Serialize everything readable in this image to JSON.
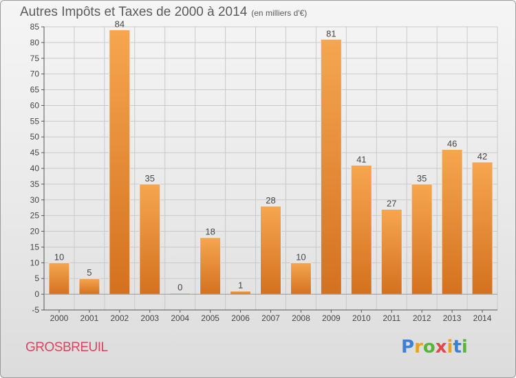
{
  "header": {
    "title": "Autres Impôts et Taxes de 2000 à 2014",
    "subtitle": "(en milliers d'€)"
  },
  "footer": {
    "commune": "GROSBREUIL",
    "logo_letters": [
      "P",
      "r",
      "o",
      "x",
      "i",
      "t",
      "i"
    ],
    "logo_colors": [
      "#3d7fd6",
      "#e8a31a",
      "#59b539",
      "#e2474b",
      "#e8a31a",
      "#3d7fd6",
      "#59b539"
    ]
  },
  "colors": {
    "bar_top": "#f6a64f",
    "bar_bottom": "#d4711f",
    "grid": "#c9c9c9",
    "axis": "#555555",
    "text": "#444444"
  },
  "chart_data": {
    "type": "bar",
    "categories": [
      "2000",
      "2001",
      "2002",
      "2003",
      "2004",
      "2005",
      "2006",
      "2007",
      "2008",
      "2009",
      "2010",
      "2011",
      "2012",
      "2013",
      "2014"
    ],
    "values": [
      10,
      5,
      84,
      35,
      0,
      18,
      1,
      28,
      10,
      81,
      41,
      27,
      35,
      46,
      42
    ],
    "data_labels": [
      "10",
      "5",
      "84",
      "35",
      "0",
      "18",
      "1",
      "28",
      "10",
      "81",
      "41",
      "27",
      "35",
      "46",
      "42"
    ],
    "ylim": [
      -5,
      85
    ],
    "yticks": [
      -5,
      0,
      5,
      10,
      15,
      20,
      25,
      30,
      35,
      40,
      45,
      50,
      55,
      60,
      65,
      70,
      75,
      80,
      85
    ],
    "title": "Autres Impôts et Taxes de 2000 à 2014",
    "subtitle": "(en milliers d'€)",
    "xlabel": "",
    "ylabel": "",
    "grid": true
  }
}
